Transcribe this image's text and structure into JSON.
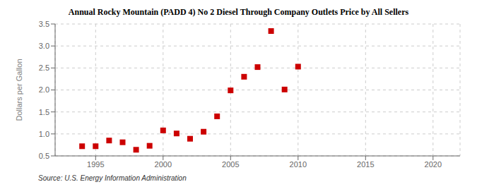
{
  "chart_data": {
    "type": "scatter",
    "title": "Annual Rocky Mountain (PADD 4) No 2 Diesel Through Company Outlets Price by All Sellers",
    "y_label": "Dollars per Gallon",
    "annotations": [
      "Source: U.S. Energy Information Administration"
    ],
    "x": [
      1994,
      1995,
      1996,
      1997,
      1998,
      1999,
      2000,
      2001,
      2002,
      2003,
      2004,
      2005,
      2006,
      2007,
      2008,
      2009,
      2010
    ],
    "values": [
      0.72,
      0.72,
      0.85,
      0.81,
      0.64,
      0.73,
      1.08,
      1.01,
      0.89,
      1.05,
      1.4,
      1.99,
      2.3,
      2.52,
      3.34,
      2.01,
      2.53
    ],
    "color": "#cc0000",
    "marker": "square",
    "xlim": [
      1992,
      2022
    ],
    "ylim": [
      0.5,
      3.5
    ],
    "xticks": [
      1995,
      2000,
      2005,
      2010,
      2015,
      2020
    ],
    "yticks": [
      0.5,
      {
        "value": 1.0,
        "label": "1.0"
      },
      1.5,
      {
        "value": 2.0,
        "label": "2.0"
      },
      2.5,
      {
        "value": 3.0,
        "label": "3.0"
      },
      3.5
    ],
    "grid": true
  }
}
